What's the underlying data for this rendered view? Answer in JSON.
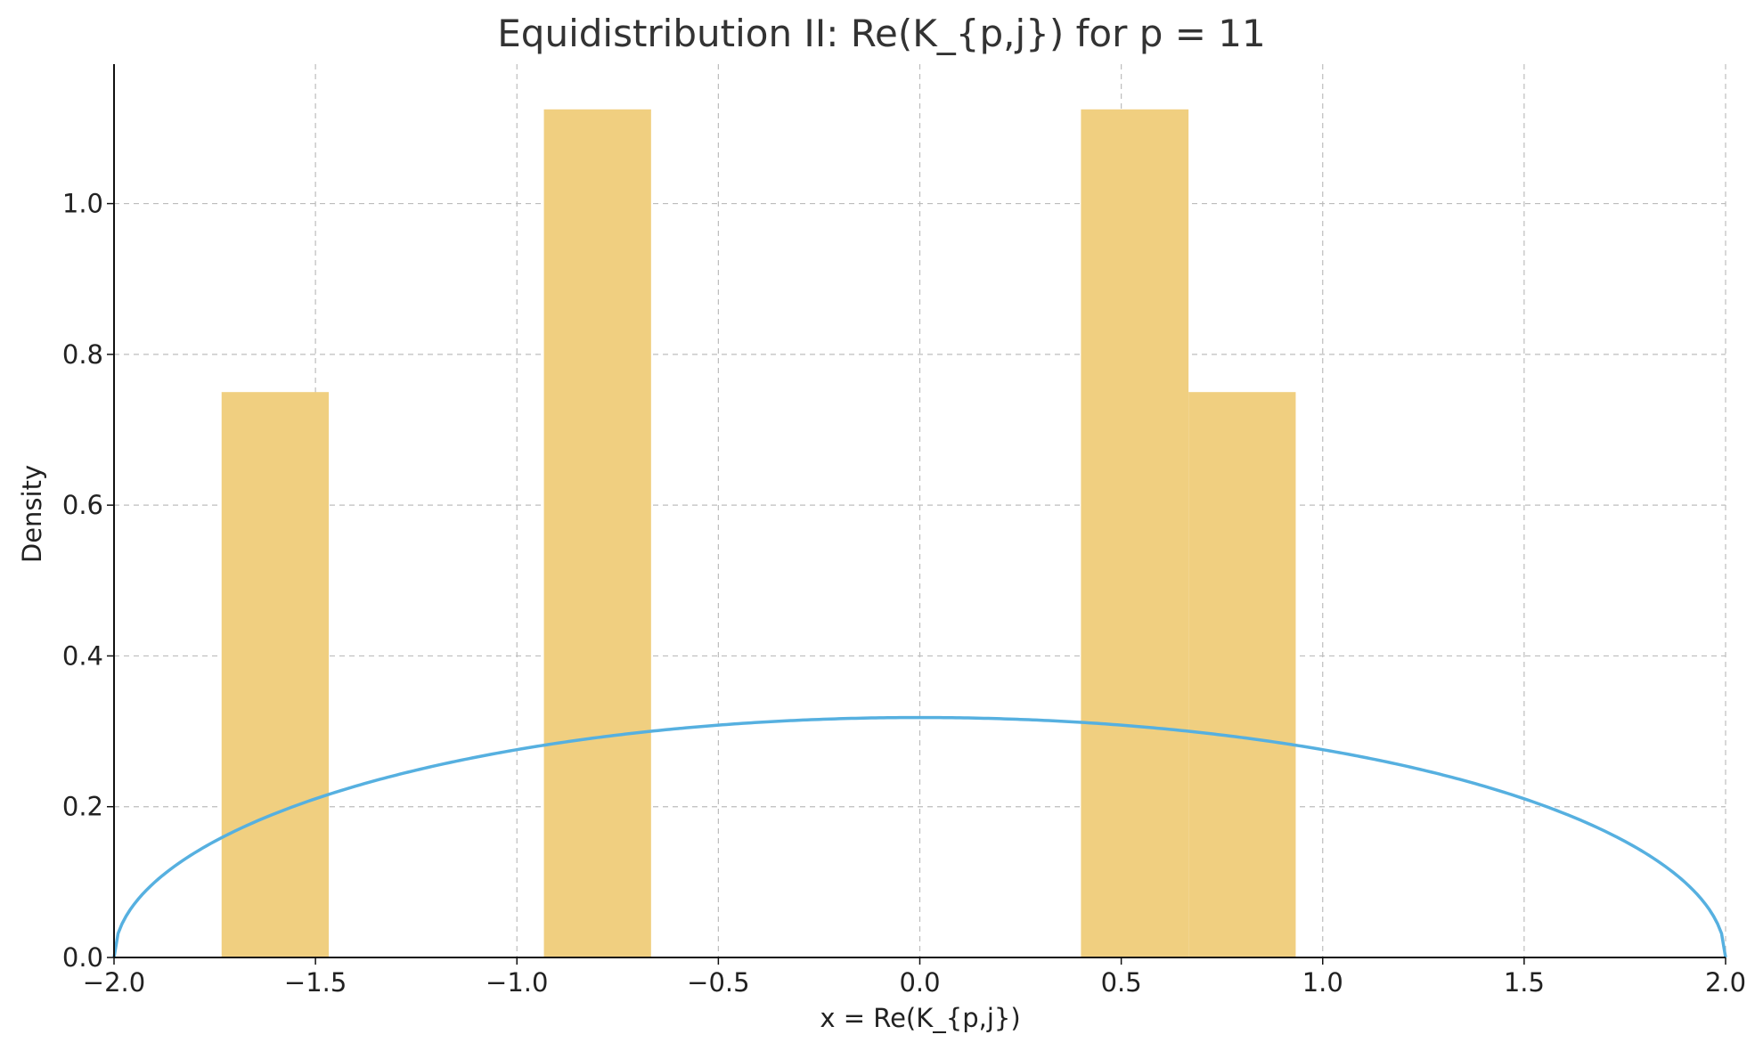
{
  "chart_data": {
    "type": "bar",
    "title": "Equidistribution II: Re(K_{p,j}) for p = 11",
    "xlabel": "x = Re(K_{p,j})",
    "ylabel": "Density",
    "xlim": [
      -2.0,
      2.0
    ],
    "ylim": [
      0.0,
      1.185
    ],
    "grid": true,
    "xticks": [
      -2.0,
      -1.5,
      -1.0,
      -0.5,
      0.0,
      0.5,
      1.0,
      1.5,
      2.0
    ],
    "xtick_labels": [
      "−2.0",
      "−1.5",
      "−1.0",
      "−0.5",
      "0.0",
      "0.5",
      "1.0",
      "1.5",
      "2.0"
    ],
    "yticks": [
      0.0,
      0.2,
      0.4,
      0.6,
      0.8,
      1.0
    ],
    "ytick_labels": [
      "0.0",
      "0.2",
      "0.4",
      "0.6",
      "0.8",
      "1.0"
    ],
    "bars": [
      {
        "x0": -1.733,
        "x1": -1.467,
        "value": 0.75
      },
      {
        "x0": -0.933,
        "x1": -0.667,
        "value": 1.125
      },
      {
        "x0": 0.4,
        "x1": 0.667,
        "value": 1.125
      },
      {
        "x0": 0.667,
        "x1": 0.933,
        "value": 0.75
      }
    ],
    "curve": {
      "formula": "sqrt(4 - x^2) / (2*pi)",
      "x_range": [
        -2.0,
        2.0
      ],
      "peak": 0.318
    },
    "colors": {
      "bars": "#f0cf80",
      "curve": "#56b0e0"
    }
  }
}
